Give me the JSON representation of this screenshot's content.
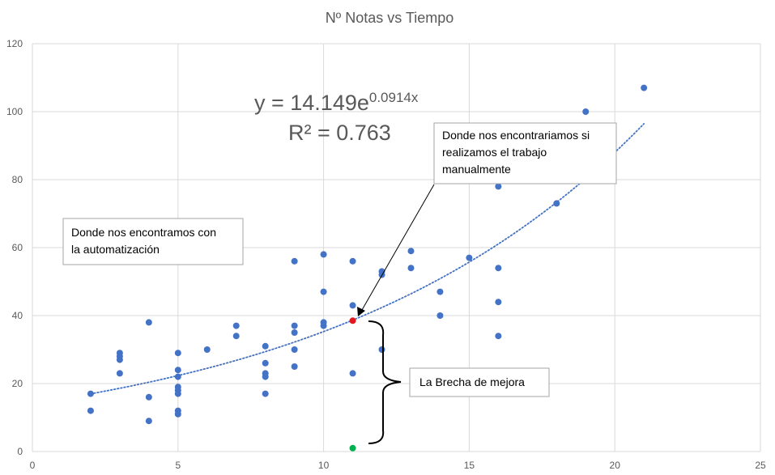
{
  "chart_data": {
    "type": "scatter",
    "title": "Nº Notas vs Tiempo",
    "xlabel": "",
    "ylabel": "",
    "xlim": [
      0,
      25
    ],
    "ylim": [
      0,
      120
    ],
    "xticks": [
      0,
      5,
      10,
      15,
      20,
      25
    ],
    "yticks": [
      0,
      20,
      40,
      60,
      80,
      100,
      120
    ],
    "grid": true,
    "legend": "none",
    "colors": {
      "points": "#4472c4",
      "trendline": "#4472c4",
      "highlight_manual": "#e0191f",
      "highlight_automation": "#00b050",
      "grid": "#d9d9d9",
      "text": "#595959"
    },
    "series": [
      {
        "values": [
          {
            "x": 2,
            "y": 17
          },
          {
            "x": 2,
            "y": 12
          },
          {
            "x": 3,
            "y": 29
          },
          {
            "x": 3,
            "y": 28
          },
          {
            "x": 3,
            "y": 27
          },
          {
            "x": 3,
            "y": 23
          },
          {
            "x": 4,
            "y": 38
          },
          {
            "x": 4,
            "y": 16
          },
          {
            "x": 4,
            "y": 9
          },
          {
            "x": 5,
            "y": 29
          },
          {
            "x": 5,
            "y": 24
          },
          {
            "x": 5,
            "y": 22
          },
          {
            "x": 5,
            "y": 19
          },
          {
            "x": 5,
            "y": 18
          },
          {
            "x": 5,
            "y": 17
          },
          {
            "x": 5,
            "y": 12
          },
          {
            "x": 5,
            "y": 11
          },
          {
            "x": 6,
            "y": 30
          },
          {
            "x": 7,
            "y": 37
          },
          {
            "x": 7,
            "y": 34
          },
          {
            "x": 8,
            "y": 31
          },
          {
            "x": 8,
            "y": 26
          },
          {
            "x": 8,
            "y": 23
          },
          {
            "x": 8,
            "y": 22
          },
          {
            "x": 8,
            "y": 17
          },
          {
            "x": 9,
            "y": 56
          },
          {
            "x": 9,
            "y": 37
          },
          {
            "x": 9,
            "y": 35
          },
          {
            "x": 9,
            "y": 30
          },
          {
            "x": 9,
            "y": 25
          },
          {
            "x": 10,
            "y": 58
          },
          {
            "x": 10,
            "y": 47
          },
          {
            "x": 10,
            "y": 38
          },
          {
            "x": 10,
            "y": 37
          },
          {
            "x": 11,
            "y": 56
          },
          {
            "x": 11,
            "y": 43
          },
          {
            "x": 11,
            "y": 23
          },
          {
            "x": 12,
            "y": 53
          },
          {
            "x": 12,
            "y": 52
          },
          {
            "x": 12,
            "y": 30
          },
          {
            "x": 13,
            "y": 59
          },
          {
            "x": 13,
            "y": 54
          },
          {
            "x": 14,
            "y": 47
          },
          {
            "x": 14,
            "y": 40
          },
          {
            "x": 15,
            "y": 57
          },
          {
            "x": 16,
            "y": 78
          },
          {
            "x": 16,
            "y": 54
          },
          {
            "x": 16,
            "y": 44
          },
          {
            "x": 16,
            "y": 34
          },
          {
            "x": 18,
            "y": 73
          },
          {
            "x": 19,
            "y": 100
          },
          {
            "x": 21,
            "y": 107
          }
        ]
      }
    ],
    "highlights": [
      {
        "x": 11,
        "y": 38.5,
        "role": "manual"
      },
      {
        "x": 11,
        "y": 1,
        "role": "automation"
      }
    ],
    "trendline": {
      "type": "exponential",
      "a": 14.149,
      "b": 0.0914,
      "x_range": [
        2,
        21
      ]
    },
    "equation": {
      "prefix": "y = 14.149e",
      "exponent": "0.0914x",
      "r2": "R² = 0.763"
    },
    "annotations": {
      "manual": [
        "Donde nos encontrariamos si",
        "realizamos el trabajo",
        "manualmente"
      ],
      "automation": [
        "Donde nos encontramos con",
        "la automatización"
      ],
      "gap": "La Brecha de mejora"
    }
  }
}
